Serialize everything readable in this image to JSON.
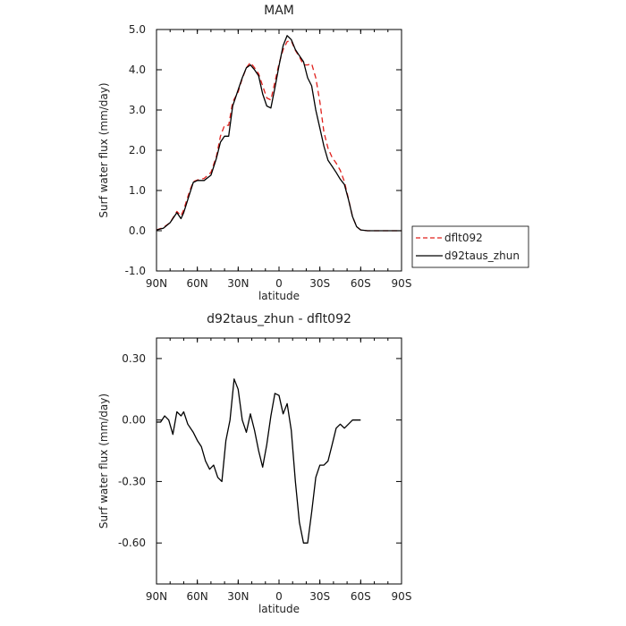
{
  "chart_data": [
    {
      "type": "line",
      "title": "MAM",
      "xlabel": "latitude",
      "ylabel": "Surf water flux (mm/day)",
      "xlim": [
        90,
        -90
      ],
      "ylim": [
        -1.0,
        5.0
      ],
      "x_ticks": [
        90,
        60,
        30,
        0,
        -30,
        -60,
        -90
      ],
      "x_tick_labels": [
        "90N",
        "60N",
        "30N",
        "0",
        "30S",
        "60S",
        "90S"
      ],
      "y_ticks": [
        -1.0,
        0.0,
        1.0,
        2.0,
        3.0,
        4.0,
        5.0
      ],
      "y_tick_labels": [
        "-1.0",
        "0.0",
        "1.0",
        "2.0",
        "3.0",
        "4.0",
        "5.0"
      ],
      "legend_position": "outside-right",
      "series": [
        {
          "name": "dflt092",
          "color": "#e0201c",
          "dash": "dashed",
          "points": [
            [
              90,
              0.02
            ],
            [
              85,
              0.08
            ],
            [
              80,
              0.2
            ],
            [
              75,
              0.48
            ],
            [
              72,
              0.37
            ],
            [
              70,
              0.52
            ],
            [
              66,
              0.95
            ],
            [
              63,
              1.22
            ],
            [
              60,
              1.26
            ],
            [
              55,
              1.3
            ],
            [
              50,
              1.45
            ],
            [
              46,
              1.85
            ],
            [
              43,
              2.35
            ],
            [
              40,
              2.62
            ],
            [
              37,
              2.62
            ],
            [
              34,
              3.2
            ],
            [
              30,
              3.45
            ],
            [
              27,
              3.78
            ],
            [
              24,
              4.05
            ],
            [
              21,
              4.18
            ],
            [
              18,
              4.05
            ],
            [
              15,
              3.9
            ],
            [
              12,
              3.6
            ],
            [
              9,
              3.3
            ],
            [
              6,
              3.25
            ],
            [
              3,
              3.7
            ],
            [
              0,
              4.15
            ],
            [
              -3,
              4.5
            ],
            [
              -6,
              4.7
            ],
            [
              -9,
              4.72
            ],
            [
              -12,
              4.48
            ],
            [
              -15,
              4.32
            ],
            [
              -18,
              4.12
            ],
            [
              -21,
              4.12
            ],
            [
              -24,
              4.15
            ],
            [
              -27,
              3.8
            ],
            [
              -30,
              3.2
            ],
            [
              -33,
              2.45
            ],
            [
              -36,
              2.05
            ],
            [
              -39,
              1.82
            ],
            [
              -42,
              1.68
            ],
            [
              -45,
              1.5
            ],
            [
              -48,
              1.22
            ],
            [
              -51,
              0.8
            ],
            [
              -54,
              0.35
            ],
            [
              -57,
              0.1
            ],
            [
              -60,
              0.02
            ],
            [
              -65,
              0.0
            ],
            [
              -70,
              0.0
            ],
            [
              -75,
              0.0
            ],
            [
              -80,
              0.0
            ],
            [
              -85,
              0.0
            ],
            [
              -90,
              0.0
            ]
          ]
        },
        {
          "name": "d92taus_zhun",
          "color": "#000000",
          "dash": "solid",
          "points": [
            [
              90,
              0.02
            ],
            [
              85,
              0.06
            ],
            [
              80,
              0.2
            ],
            [
              75,
              0.45
            ],
            [
              72,
              0.3
            ],
            [
              70,
              0.45
            ],
            [
              66,
              0.88
            ],
            [
              63,
              1.2
            ],
            [
              60,
              1.25
            ],
            [
              55,
              1.25
            ],
            [
              50,
              1.38
            ],
            [
              46,
              1.8
            ],
            [
              43,
              2.2
            ],
            [
              40,
              2.35
            ],
            [
              37,
              2.35
            ],
            [
              34,
              3.1
            ],
            [
              30,
              3.5
            ],
            [
              27,
              3.8
            ],
            [
              24,
              4.05
            ],
            [
              21,
              4.12
            ],
            [
              18,
              4.0
            ],
            [
              15,
              3.85
            ],
            [
              12,
              3.4
            ],
            [
              9,
              3.1
            ],
            [
              6,
              3.05
            ],
            [
              3,
              3.55
            ],
            [
              0,
              4.1
            ],
            [
              -3,
              4.6
            ],
            [
              -6,
              4.85
            ],
            [
              -9,
              4.75
            ],
            [
              -12,
              4.5
            ],
            [
              -15,
              4.35
            ],
            [
              -18,
              4.2
            ],
            [
              -21,
              3.8
            ],
            [
              -24,
              3.6
            ],
            [
              -27,
              3.0
            ],
            [
              -30,
              2.55
            ],
            [
              -33,
              2.1
            ],
            [
              -36,
              1.75
            ],
            [
              -39,
              1.6
            ],
            [
              -42,
              1.45
            ],
            [
              -45,
              1.28
            ],
            [
              -48,
              1.15
            ],
            [
              -51,
              0.78
            ],
            [
              -54,
              0.35
            ],
            [
              -57,
              0.1
            ],
            [
              -60,
              0.02
            ],
            [
              -65,
              0.0
            ],
            [
              -70,
              0.0
            ],
            [
              -75,
              0.0
            ],
            [
              -80,
              0.0
            ],
            [
              -85,
              0.0
            ],
            [
              -90,
              0.0
            ]
          ]
        }
      ]
    },
    {
      "type": "line",
      "title": "d92taus_zhun - dflt092",
      "xlabel": "latitude",
      "ylabel": "Surf water flux (mm/day)",
      "xlim": [
        90,
        -90
      ],
      "ylim": [
        -0.8,
        0.4
      ],
      "x_ticks": [
        90,
        60,
        30,
        0,
        -30,
        -60,
        -90
      ],
      "x_tick_labels": [
        "90N",
        "60N",
        "30N",
        "0",
        "30S",
        "60S",
        "90S"
      ],
      "y_ticks": [
        -0.6,
        -0.3,
        0.0,
        0.3
      ],
      "y_tick_labels": [
        "-0.60",
        "-0.30",
        "0.00",
        "0.30"
      ],
      "series": [
        {
          "color": "#000000",
          "dash": "solid",
          "points": [
            [
              90,
              -0.01
            ],
            [
              87,
              -0.01
            ],
            [
              84,
              0.02
            ],
            [
              81,
              0.0
            ],
            [
              78,
              -0.07
            ],
            [
              75,
              0.04
            ],
            [
              72,
              0.02
            ],
            [
              70,
              0.04
            ],
            [
              67,
              -0.02
            ],
            [
              63,
              -0.06
            ],
            [
              60,
              -0.1
            ],
            [
              57,
              -0.13
            ],
            [
              54,
              -0.2
            ],
            [
              51,
              -0.24
            ],
            [
              48,
              -0.22
            ],
            [
              45,
              -0.28
            ],
            [
              42,
              -0.3
            ],
            [
              39,
              -0.1
            ],
            [
              36,
              0.0
            ],
            [
              33,
              0.2
            ],
            [
              30,
              0.15
            ],
            [
              27,
              0.0
            ],
            [
              24,
              -0.06
            ],
            [
              21,
              0.03
            ],
            [
              18,
              -0.05
            ],
            [
              15,
              -0.15
            ],
            [
              12,
              -0.23
            ],
            [
              9,
              -0.12
            ],
            [
              6,
              0.02
            ],
            [
              3,
              0.13
            ],
            [
              0,
              0.12
            ],
            [
              -3,
              0.03
            ],
            [
              -6,
              0.08
            ],
            [
              -9,
              -0.05
            ],
            [
              -12,
              -0.3
            ],
            [
              -15,
              -0.5
            ],
            [
              -18,
              -0.6
            ],
            [
              -21,
              -0.6
            ],
            [
              -24,
              -0.45
            ],
            [
              -27,
              -0.28
            ],
            [
              -30,
              -0.22
            ],
            [
              -33,
              -0.22
            ],
            [
              -36,
              -0.2
            ],
            [
              -39,
              -0.12
            ],
            [
              -42,
              -0.04
            ],
            [
              -45,
              -0.02
            ],
            [
              -48,
              -0.04
            ],
            [
              -51,
              -0.02
            ],
            [
              -54,
              0.0
            ],
            [
              -57,
              0.0
            ],
            [
              -60,
              0.0
            ]
          ]
        }
      ]
    }
  ]
}
